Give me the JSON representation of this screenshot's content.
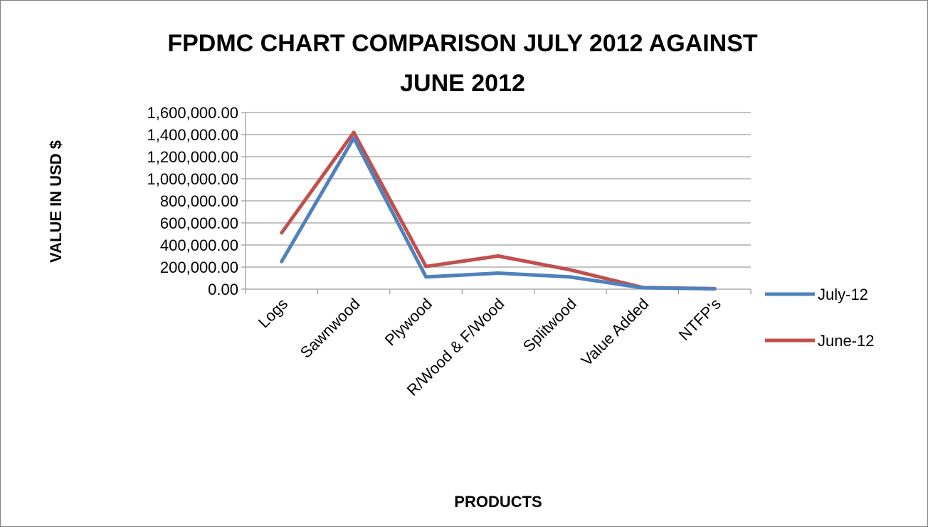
{
  "chart_data": {
    "type": "line",
    "title_lines": [
      "FPDMC CHART COMPARISON JULY 2012 AGAINST",
      "JUNE 2012"
    ],
    "xlabel": "PRODUCTS",
    "ylabel": "VALUE IN USD $",
    "categories": [
      "Logs",
      "Sawnwood",
      "Plywood",
      "R/Wood & F/Wood",
      "Splitwood",
      "Value Added",
      "NTFP's"
    ],
    "ylim": [
      0,
      1600000
    ],
    "yticks": [
      0,
      200000,
      400000,
      600000,
      800000,
      1000000,
      1200000,
      1400000,
      1600000
    ],
    "ytick_labels": [
      "0.00",
      "200,000.00",
      "400,000.00",
      "600,000.00",
      "800,000.00",
      "1,000,000.00",
      "1,200,000.00",
      "1,400,000.00",
      "1,600,000.00"
    ],
    "grid": true,
    "legend_position": "right",
    "series": [
      {
        "name": "July-12",
        "color": "#4f81bd",
        "values": [
          250000,
          1370000,
          110000,
          145000,
          110000,
          12000,
          3000
        ]
      },
      {
        "name": "June-12",
        "color": "#c0504d",
        "values": [
          510000,
          1420000,
          205000,
          300000,
          175000,
          15000,
          4000
        ]
      }
    ]
  }
}
